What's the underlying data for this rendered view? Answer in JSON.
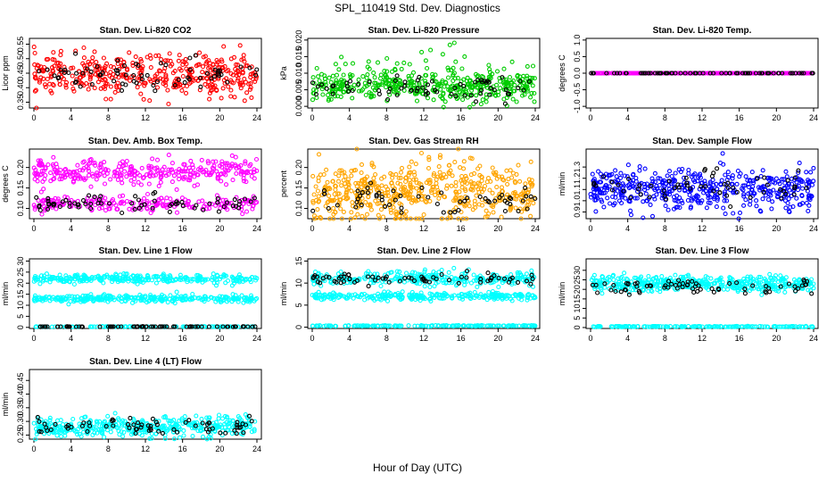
{
  "page": {
    "title": "SPL_110419  Std. Dev. Diagnostics",
    "xlabel": "Hour of Day (UTC)"
  },
  "chart_data": [
    {
      "type": "scatter",
      "title": "Stan. Dev. Li-820 CO2",
      "ylabel": "Licor ppm",
      "xlim": [
        0,
        24
      ],
      "xticks": [
        0,
        4,
        8,
        12,
        16,
        20,
        24
      ],
      "ylim": [
        0.33,
        0.57
      ],
      "yticks": [
        0.35,
        0.4,
        0.45,
        0.5,
        0.55
      ],
      "ytick_labels": [
        "0.35",
        "0.40",
        "0.45",
        "0.50",
        "0.55"
      ],
      "series": [
        {
          "color": "#ff0000",
          "bands": [
            {
              "mean": 0.445,
              "sd": 0.035,
              "n": 420
            }
          ]
        },
        {
          "color": "#000000",
          "bands": [
            {
              "mean": 0.445,
              "sd": 0.03,
              "n": 70
            }
          ]
        }
      ]
    },
    {
      "type": "scatter",
      "title": "Stan. Dev. Li-820 Pressure",
      "ylabel": "kPa",
      "xlim": [
        0,
        24
      ],
      "xticks": [
        0,
        4,
        8,
        12,
        16,
        20,
        24
      ],
      "ylim": [
        -0.0005,
        0.0205
      ],
      "yticks": [
        0.0,
        0.005,
        0.01,
        0.015,
        0.02
      ],
      "ytick_labels": [
        "0.000",
        "0.005",
        "0.010",
        "0.015",
        "0.020"
      ],
      "series": [
        {
          "color": "#00cc00",
          "bands": [
            {
              "mean": 0.006,
              "sd": 0.0022,
              "n": 420
            },
            {
              "mean": 0.012,
              "sd": 0.003,
              "n": 40
            }
          ]
        },
        {
          "color": "#000000",
          "bands": [
            {
              "mean": 0.0055,
              "sd": 0.0018,
              "n": 70
            }
          ]
        }
      ]
    },
    {
      "type": "scatter",
      "title": "Stan. Dev. Li-820 Temp.",
      "ylabel": "degrees C",
      "xlim": [
        0,
        24
      ],
      "xticks": [
        0,
        4,
        8,
        12,
        16,
        20,
        24
      ],
      "ylim": [
        -1.05,
        1.05
      ],
      "yticks": [
        -1.0,
        -0.5,
        0.0,
        0.5,
        1.0
      ],
      "ytick_labels": [
        "-1.0",
        "-0.5",
        "0.0",
        "0.5",
        "1.0"
      ],
      "series": [
        {
          "color": "#ff00ff",
          "bands": [
            {
              "mean": 0.0,
              "sd": 0.0,
              "n": 300
            }
          ]
        },
        {
          "color": "#000000",
          "bands": [
            {
              "mean": 0.0,
              "sd": 0.0,
              "n": 70
            }
          ]
        }
      ]
    },
    {
      "type": "scatter",
      "title": "Stan. Dev. Amb. Box Temp.",
      "ylabel": "degrees C",
      "xlim": [
        0,
        24
      ],
      "xticks": [
        0,
        4,
        8,
        12,
        16,
        20,
        24
      ],
      "ylim": [
        0.075,
        0.245
      ],
      "yticks": [
        0.1,
        0.15,
        0.2
      ],
      "ytick_labels": [
        "0.10",
        "0.15",
        "0.20"
      ],
      "series": [
        {
          "color": "#ff00ff",
          "bands": [
            {
              "mean": 0.19,
              "sd": 0.015,
              "n": 320
            },
            {
              "mean": 0.11,
              "sd": 0.01,
              "n": 220
            }
          ]
        },
        {
          "color": "#000000",
          "bands": [
            {
              "mean": 0.11,
              "sd": 0.012,
              "n": 70
            }
          ]
        }
      ]
    },
    {
      "type": "scatter",
      "title": "Stan. Dev. Gas Stream RH",
      "ylabel": "percent",
      "xlim": [
        0,
        24
      ],
      "xticks": [
        0,
        4,
        8,
        12,
        16,
        20,
        24
      ],
      "ylim": [
        0.075,
        0.245
      ],
      "yticks": [
        0.1,
        0.15,
        0.2
      ],
      "ytick_labels": [
        "0.10",
        "0.15",
        "0.20"
      ],
      "series": [
        {
          "color": "#ffa500",
          "bands": [
            {
              "mean": 0.13,
              "sd": 0.03,
              "n": 420
            },
            {
              "mean": 0.18,
              "sd": 0.03,
              "n": 120
            }
          ]
        },
        {
          "color": "#000000",
          "bands": [
            {
              "mean": 0.12,
              "sd": 0.02,
              "n": 60
            }
          ]
        }
      ]
    },
    {
      "type": "scatter",
      "title": "Stan. Dev. Sample Flow",
      "ylabel": "ml/min",
      "xlim": [
        0,
        24
      ],
      "xticks": [
        0,
        4,
        8,
        12,
        16,
        20,
        24
      ],
      "ylim": [
        0.84,
        1.46
      ],
      "yticks": [
        0.9,
        1.0,
        1.1,
        1.2,
        1.3
      ],
      "ytick_labels": [
        "0.9",
        "1.0",
        "1.1",
        "1.2",
        "1.3"
      ],
      "series": [
        {
          "color": "#0000ff",
          "bands": [
            {
              "mean": 1.1,
              "sd": 0.09,
              "n": 480
            }
          ]
        },
        {
          "color": "#000000",
          "bands": [
            {
              "mean": 1.12,
              "sd": 0.07,
              "n": 60
            }
          ]
        }
      ]
    },
    {
      "type": "scatter",
      "title": "Stan. Dev. Line 1 Flow",
      "ylabel": "ml/min",
      "xlim": [
        0,
        24
      ],
      "xticks": [
        0,
        4,
        8,
        12,
        16,
        20,
        24
      ],
      "ylim": [
        -0.5,
        31
      ],
      "yticks": [
        0,
        5,
        10,
        15,
        20,
        25,
        30
      ],
      "ytick_labels": [
        "0",
        "5",
        "10",
        "15",
        "20",
        "25",
        "30"
      ],
      "series": [
        {
          "color": "#00ffff",
          "bands": [
            {
              "mean": 22,
              "sd": 1.0,
              "n": 300
            },
            {
              "mean": 13,
              "sd": 0.8,
              "n": 300
            },
            {
              "mean": 0.3,
              "sd": 0.05,
              "n": 120
            }
          ]
        },
        {
          "color": "#000000",
          "bands": [
            {
              "mean": 0.3,
              "sd": 0.05,
              "n": 70
            }
          ]
        }
      ]
    },
    {
      "type": "scatter",
      "title": "Stan. Dev. Line 2 Flow",
      "ylabel": "ml/min",
      "xlim": [
        0,
        24
      ],
      "xticks": [
        0,
        4,
        8,
        12,
        16,
        20,
        24
      ],
      "ylim": [
        -0.3,
        15.5
      ],
      "yticks": [
        0,
        5,
        10,
        15
      ],
      "ytick_labels": [
        "0",
        "5",
        "10",
        "15"
      ],
      "series": [
        {
          "color": "#00ffff",
          "bands": [
            {
              "mean": 11,
              "sd": 0.8,
              "n": 300
            },
            {
              "mean": 7,
              "sd": 0.4,
              "n": 280
            },
            {
              "mean": 0.3,
              "sd": 0.05,
              "n": 150
            }
          ]
        },
        {
          "color": "#000000",
          "bands": [
            {
              "mean": 11,
              "sd": 0.7,
              "n": 70
            }
          ]
        }
      ]
    },
    {
      "type": "scatter",
      "title": "Stan. Dev. Line 3 Flow",
      "ylabel": "ml/min",
      "xlim": [
        0,
        24
      ],
      "xticks": [
        0,
        4,
        8,
        12,
        16,
        20,
        24
      ],
      "ylim": [
        -0.5,
        36
      ],
      "yticks": [
        0,
        5,
        10,
        15,
        20,
        25,
        30
      ],
      "ytick_labels": [
        "0",
        "5",
        "10",
        "15",
        "20",
        "25",
        "30"
      ],
      "series": [
        {
          "color": "#00ffff",
          "bands": [
            {
              "mean": 23,
              "sd": 2.0,
              "n": 450
            },
            {
              "mean": 0.5,
              "sd": 0.1,
              "n": 150
            }
          ]
        },
        {
          "color": "#000000",
          "bands": [
            {
              "mean": 21,
              "sd": 1.8,
              "n": 70
            }
          ]
        }
      ]
    },
    {
      "type": "scatter",
      "title": "Stan. Dev. Line 4 (LT) Flow",
      "ylabel": "ml/min",
      "xlim": [
        0,
        24
      ],
      "xticks": [
        0,
        4,
        8,
        12,
        16,
        20,
        24
      ],
      "ylim": [
        0.235,
        0.49
      ],
      "yticks": [
        0.25,
        0.3,
        0.35,
        0.4,
        0.45
      ],
      "ytick_labels": [
        "0.25",
        "0.30",
        "0.35",
        "0.40",
        "0.45"
      ],
      "series": [
        {
          "color": "#00ffff",
          "bands": [
            {
              "mean": 0.28,
              "sd": 0.018,
              "n": 420
            }
          ]
        },
        {
          "color": "#000000",
          "bands": [
            {
              "mean": 0.28,
              "sd": 0.015,
              "n": 70
            }
          ]
        }
      ]
    }
  ]
}
